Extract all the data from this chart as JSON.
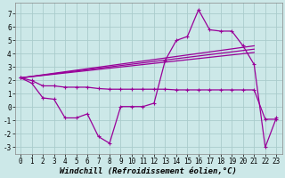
{
  "background_color": "#cce8e8",
  "grid_color": "#aacccc",
  "line_color": "#990099",
  "marker": "+",
  "xlabel": "Windchill (Refroidissement éolien,°C)",
  "xlabel_fontsize": 6.5,
  "tick_fontsize": 5.5,
  "xlim": [
    -0.5,
    23.5
  ],
  "ylim": [
    -3.5,
    7.8
  ],
  "yticks": [
    -3,
    -2,
    -1,
    0,
    1,
    2,
    3,
    4,
    5,
    6,
    7
  ],
  "xticks": [
    0,
    1,
    2,
    3,
    4,
    5,
    6,
    7,
    8,
    9,
    10,
    11,
    12,
    13,
    14,
    15,
    16,
    17,
    18,
    19,
    20,
    21,
    22,
    23
  ],
  "series_main": {
    "x": [
      0,
      1,
      2,
      3,
      4,
      5,
      6,
      7,
      8,
      9,
      10,
      11,
      12,
      13,
      14,
      15,
      16,
      17,
      18,
      19,
      20,
      21,
      22,
      23
    ],
    "y": [
      2.2,
      1.8,
      0.7,
      0.6,
      -0.8,
      -0.8,
      -0.5,
      -2.2,
      -2.7,
      0.05,
      0.05,
      0.05,
      0.3,
      3.5,
      5.0,
      5.3,
      7.3,
      5.8,
      5.7,
      5.7,
      4.6,
      3.2,
      -3.0,
      -0.8
    ]
  },
  "series_flat": {
    "x": [
      0,
      1,
      2,
      3,
      4,
      5,
      6,
      7,
      8,
      9,
      10,
      11,
      12,
      13,
      14,
      15,
      16,
      17,
      18,
      19,
      20,
      21,
      22,
      23
    ],
    "y": [
      2.2,
      2.0,
      1.6,
      1.6,
      1.5,
      1.5,
      1.5,
      1.4,
      1.35,
      1.35,
      1.35,
      1.35,
      1.35,
      1.35,
      1.3,
      1.3,
      1.3,
      1.3,
      1.3,
      1.3,
      1.3,
      1.3,
      -0.9,
      -0.9
    ]
  },
  "lines": [
    {
      "x": [
        0,
        21
      ],
      "y": [
        2.2,
        4.6
      ]
    },
    {
      "x": [
        0,
        21
      ],
      "y": [
        2.2,
        4.35
      ]
    },
    {
      "x": [
        0,
        21
      ],
      "y": [
        2.2,
        4.1
      ]
    }
  ]
}
